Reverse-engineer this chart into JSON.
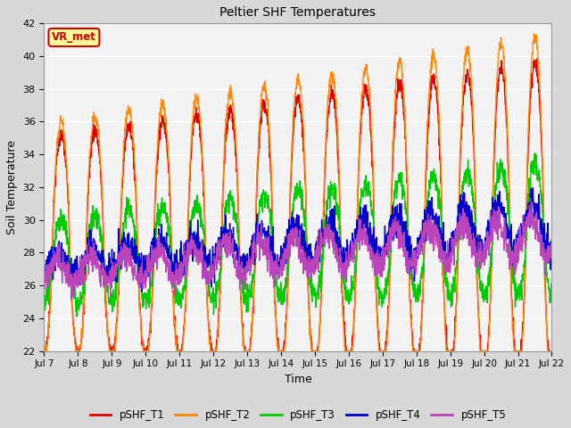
{
  "title": "Peltier SHF Temperatures",
  "xlabel": "Time",
  "ylabel": "Soil Temperature",
  "ylim": [
    22,
    42
  ],
  "xlim": [
    0,
    15
  ],
  "x_tick_labels": [
    "Jul 7",
    "Jul 8",
    "Jul 9",
    "Jul 10",
    "Jul 11",
    "Jul 12",
    "Jul 13",
    "Jul 14",
    "Jul 15",
    "Jul 16",
    "Jul 17",
    "Jul 18",
    "Jul 19",
    "Jul 20",
    "Jul 21",
    "Jul 22"
  ],
  "series_names": [
    "pSHF_T1",
    "pSHF_T2",
    "pSHF_T3",
    "pSHF_T4",
    "pSHF_T5"
  ],
  "colors": [
    "#dd0000",
    "#ff8800",
    "#00cc00",
    "#0000cc",
    "#bb44bb"
  ],
  "linewidths": [
    1.0,
    1.0,
    1.0,
    1.0,
    1.0
  ],
  "background_color": "#d8d8d8",
  "plot_bg_color": "#f2f2f2",
  "grid_color": "#ffffff",
  "annotation_text": "VR_met",
  "annotation_color": "#cc0000",
  "annotation_bg": "#ffff99",
  "annotation_border": "#cc0000",
  "figsize": [
    6.4,
    4.8
  ],
  "dpi": 100
}
